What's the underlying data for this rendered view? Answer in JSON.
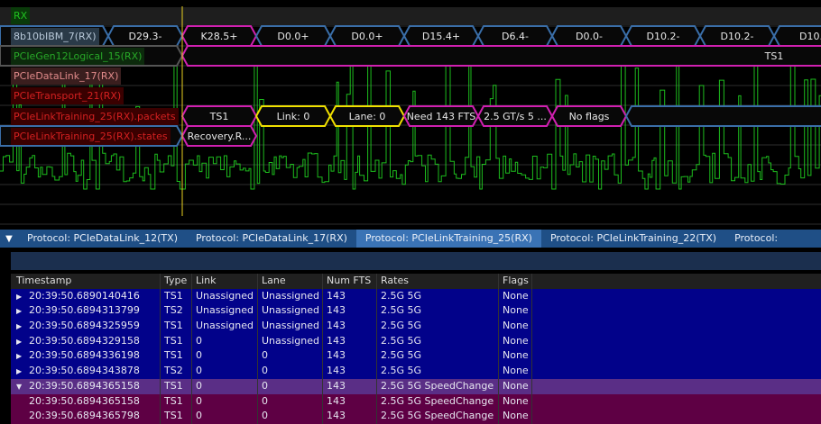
{
  "waveform": {
    "cursor_color": "#e8d020",
    "signal_color": "#22dd22",
    "channels": [
      {
        "label": "RX",
        "bg": "#0a3a0a",
        "fg": "#20c020"
      },
      {
        "label": "8b10bIBM_7(RX)",
        "bg": "#2a3a48",
        "fg": "#b8c8d8"
      },
      {
        "label": "PCIeGen12Logical_15(RX)",
        "bg": "#0c2a0c",
        "fg": "#28a828"
      },
      {
        "label": "PCIeDataLink_17(RX)",
        "bg": "#3a1e1e",
        "fg": "#e08a8a"
      },
      {
        "label": "PCIeTransport_21(RX)",
        "bg": "#3a0000",
        "fg": "#d42020"
      },
      {
        "label": "PCIeLinkTraining_25(RX).packets",
        "bg": "#3a0000",
        "fg": "#d42020"
      },
      {
        "label": "PCIeLinkTraining_25(RX).states",
        "bg": "#3a0000",
        "fg": "#d42020"
      }
    ],
    "colors": {
      "blue": "#3a6ea8",
      "magenta": "#d020b0",
      "yellow": "#f0e000",
      "gray": "#555555"
    },
    "symbols": [
      {
        "text": "D29.3-",
        "color": "blue"
      },
      {
        "text": "K28.5+",
        "color": "magenta"
      },
      {
        "text": "D0.0+",
        "color": "blue"
      },
      {
        "text": "D0.0+",
        "color": "blue"
      },
      {
        "text": "D15.4+",
        "color": "blue"
      },
      {
        "text": "D6.4-",
        "color": "blue"
      },
      {
        "text": "D0.0-",
        "color": "blue"
      },
      {
        "text": "D10.2-",
        "color": "blue"
      },
      {
        "text": "D10.2-",
        "color": "blue"
      },
      {
        "text": "D10.",
        "color": "blue"
      }
    ],
    "logical_label": "TS1",
    "packets": [
      {
        "text": "TS1",
        "color": "magenta"
      },
      {
        "text": "Link: 0",
        "color": "yellow"
      },
      {
        "text": "Lane: 0",
        "color": "yellow"
      },
      {
        "text": "Need 143 FTS",
        "color": "magenta"
      },
      {
        "text": "2.5 GT/s 5 ...",
        "color": "magenta"
      },
      {
        "text": "No flags",
        "color": "magenta"
      }
    ],
    "states": [
      {
        "text": "Recovery.R...",
        "color": "magenta"
      }
    ]
  },
  "tabs": [
    {
      "label": "Protocol: PCIeDataLink_12(TX)"
    },
    {
      "label": "Protocol: PCIeDataLink_17(RX)"
    },
    {
      "label": "Protocol: PCIeLinkTraining_25(RX)",
      "active": true
    },
    {
      "label": "Protocol: PCIeLinkTraining_22(TX)"
    },
    {
      "label": "Protocol: "
    }
  ],
  "table": {
    "columns": [
      "Timestamp",
      "Type",
      "Link",
      "Lane",
      "Num FTS",
      "Rates",
      "Flags"
    ],
    "rows": [
      {
        "state": "collapsed",
        "cells": [
          "20:39:50.6890140416",
          "TS1",
          "Unassigned",
          "Unassigned",
          "143",
          "2.5G 5G",
          "None"
        ]
      },
      {
        "state": "collapsed",
        "cells": [
          "20:39:50.6894313799",
          "TS2",
          "Unassigned",
          "Unassigned",
          "143",
          "2.5G 5G",
          "None"
        ]
      },
      {
        "state": "collapsed",
        "cells": [
          "20:39:50.6894325959",
          "TS1",
          "Unassigned",
          "Unassigned",
          "143",
          "2.5G 5G",
          "None"
        ]
      },
      {
        "state": "collapsed",
        "cells": [
          "20:39:50.6894329158",
          "TS1",
          "0",
          "Unassigned",
          "143",
          "2.5G 5G",
          "None"
        ]
      },
      {
        "state": "collapsed",
        "cells": [
          "20:39:50.6894336198",
          "TS1",
          "0",
          "0",
          "143",
          "2.5G 5G",
          "None"
        ]
      },
      {
        "state": "collapsed",
        "cells": [
          "20:39:50.6894343878",
          "TS2",
          "0",
          "0",
          "143",
          "2.5G 5G",
          "None"
        ]
      },
      {
        "state": "expanded",
        "selected": true,
        "cells": [
          "20:39:50.6894365158",
          "TS1",
          "0",
          "0",
          "143",
          "2.5G 5G SpeedChange",
          "None"
        ]
      },
      {
        "state": "child",
        "cells": [
          "20:39:50.6894365158",
          "TS1",
          "0",
          "0",
          "143",
          "2.5G 5G SpeedChange",
          "None"
        ]
      },
      {
        "state": "child",
        "cells": [
          "20:39:50.6894365798",
          "TS1",
          "0",
          "0",
          "143",
          "2.5G 5G SpeedChange",
          "None"
        ]
      }
    ]
  }
}
